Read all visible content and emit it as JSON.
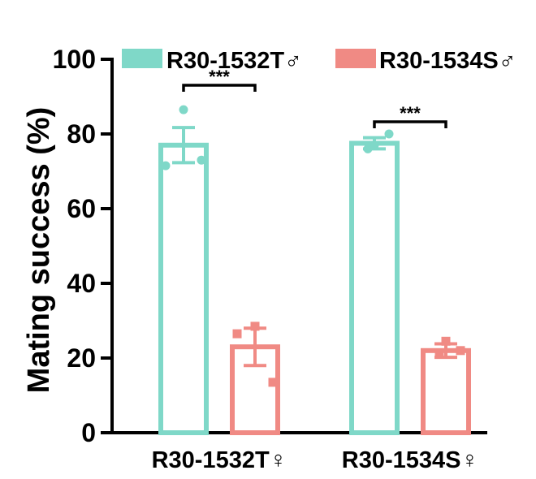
{
  "chart_data": {
    "type": "bar",
    "title": "",
    "ylabel": "Mating success (%)",
    "xlabel": "",
    "ylim": [
      0,
      100
    ],
    "yticks": [
      0,
      20,
      40,
      60,
      80,
      100
    ],
    "categories": [
      "R30-1532T♀",
      "R30-1534S♀"
    ],
    "legend_position": "top",
    "series": [
      {
        "name": "R30-1532T♂",
        "color": "#7fd8c8",
        "values": [
          77,
          77.5
        ],
        "errors": [
          4.7,
          1.5
        ],
        "points": [
          [
            86.5,
            71.5,
            73
          ],
          [
            76,
            77,
            80
          ]
        ]
      },
      {
        "name": "R30-1534S♂",
        "color": "#f08a84",
        "values": [
          23,
          22
        ],
        "errors": [
          5,
          1.8
        ],
        "points": [
          [
            28.5,
            26.5,
            13.5
          ],
          [
            21,
            24.5,
            22
          ]
        ]
      }
    ],
    "annotations": [
      {
        "text": "***",
        "category": 0
      },
      {
        "text": "***",
        "category": 1
      }
    ]
  }
}
